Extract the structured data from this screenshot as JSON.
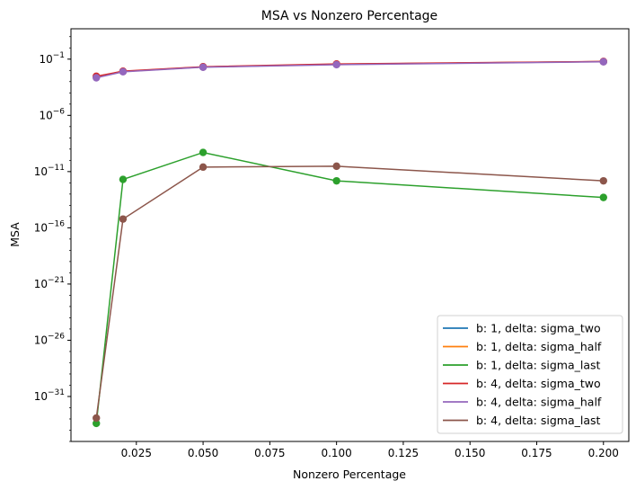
{
  "chart_data": {
    "type": "line",
    "title": "MSA vs Nonzero Percentage",
    "xlabel": "Nonzero Percentage",
    "ylabel": "MSA",
    "yscale": "log",
    "xlim": [
      0.0005,
      0.2095
    ],
    "ylim_exp": [
      -35,
      1.7
    ],
    "x": [
      0.01,
      0.02,
      0.05,
      0.1,
      0.2
    ],
    "x_ticks": [
      0.025,
      0.05,
      0.075,
      0.1,
      0.125,
      0.15,
      0.175,
      0.2
    ],
    "x_tick_labels": [
      "0.025",
      "0.050",
      "0.075",
      "0.100",
      "0.125",
      "0.150",
      "0.175",
      "0.200"
    ],
    "y_tick_exponents": [
      -1,
      -6,
      -11,
      -16,
      -21,
      -26,
      -31
    ],
    "legend_position": "lower right",
    "grid": false,
    "series": [
      {
        "name": "b: 1, delta: sigma_two",
        "color": "#1f77b4",
        "values": [
          0.0028,
          0.008,
          0.02,
          0.035,
          0.06
        ]
      },
      {
        "name": "b: 1, delta: sigma_half",
        "color": "#ff7f0e",
        "values": [
          0.0028,
          0.008,
          0.02,
          0.035,
          0.06
        ]
      },
      {
        "name": "b: 1, delta: sigma_last",
        "color": "#2ca02c",
        "values": [
          4e-34,
          2e-12,
          5e-10,
          1.5e-12,
          5e-14
        ]
      },
      {
        "name": "b: 4, delta: sigma_two",
        "color": "#d62728",
        "values": [
          0.003,
          0.0085,
          0.021,
          0.037,
          0.062
        ]
      },
      {
        "name": "b: 4, delta: sigma_half",
        "color": "#9467bd",
        "values": [
          0.0022,
          0.0075,
          0.019,
          0.032,
          0.058
        ]
      },
      {
        "name": "b: 4, delta: sigma_last",
        "color": "#8c564b",
        "values": [
          1.2e-33,
          6e-16,
          2.5e-11,
          3e-11,
          1.5e-12
        ]
      }
    ]
  }
}
